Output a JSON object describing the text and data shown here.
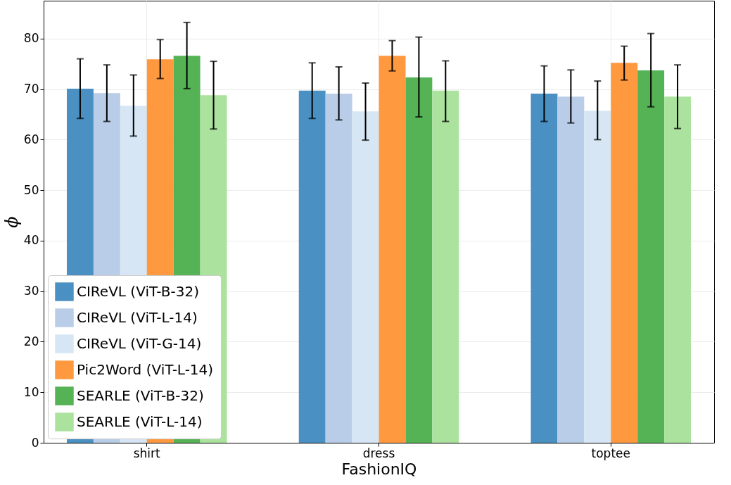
{
  "chart_data": {
    "type": "bar",
    "xlabel": "FashionIQ",
    "ylabel": "ϕ",
    "categories": [
      "shirt",
      "dress",
      "toptee"
    ],
    "ylim": [
      0,
      87.5
    ],
    "yticks": [
      0,
      10,
      20,
      30,
      40,
      50,
      60,
      70,
      80
    ],
    "grid": true,
    "legend": "bottom left",
    "series": [
      {
        "name": "CIReVL (ViT-B-32)",
        "color": "#4a90c2",
        "values": [
          70.1,
          69.7,
          69.1
        ],
        "errors": [
          [
            64.2,
            76.0
          ],
          [
            64.2,
            75.2
          ],
          [
            63.6,
            74.6
          ]
        ]
      },
      {
        "name": "CIReVL (ViT-L-14)",
        "color": "#b9cde8",
        "values": [
          69.2,
          69.1,
          68.5
        ],
        "errors": [
          [
            63.6,
            74.8
          ],
          [
            63.9,
            74.4
          ],
          [
            63.3,
            73.8
          ]
        ]
      },
      {
        "name": "CIReVL (ViT-G-14)",
        "color": "#d6e6f4",
        "values": [
          66.7,
          65.6,
          65.7
        ],
        "errors": [
          [
            60.7,
            72.8
          ],
          [
            59.9,
            71.2
          ],
          [
            60.0,
            71.6
          ]
        ]
      },
      {
        "name": "Pic2Word (ViT-L-14)",
        "color": "#ff9940",
        "values": [
          75.9,
          76.6,
          75.2
        ],
        "errors": [
          [
            72.1,
            79.8
          ],
          [
            73.6,
            79.6
          ],
          [
            71.8,
            78.5
          ]
        ]
      },
      {
        "name": "SEARLE (ViT-B-32)",
        "color": "#55b255",
        "values": [
          76.6,
          72.3,
          73.7
        ],
        "errors": [
          [
            70.1,
            83.2
          ],
          [
            64.5,
            80.3
          ],
          [
            66.5,
            81.0
          ]
        ]
      },
      {
        "name": "SEARLE (ViT-L-14)",
        "color": "#abe29e",
        "values": [
          68.8,
          69.7,
          68.5
        ],
        "errors": [
          [
            62.1,
            75.5
          ],
          [
            63.6,
            75.6
          ],
          [
            62.2,
            74.8
          ]
        ]
      }
    ]
  }
}
